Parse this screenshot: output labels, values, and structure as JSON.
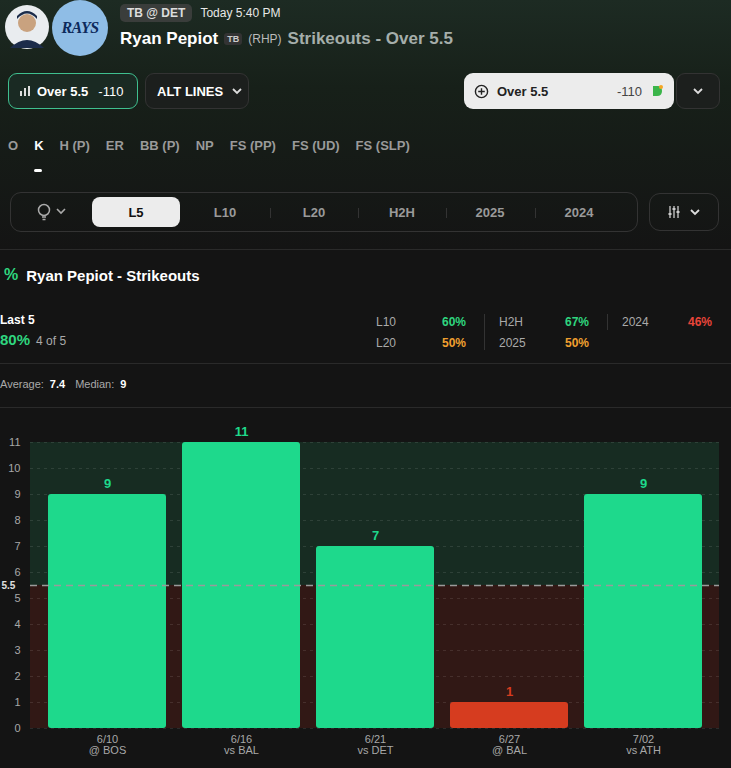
{
  "header": {
    "logo_text": "RAYS",
    "matchup": "TB @ DET",
    "time": "Today 5:40 PM",
    "player": "Ryan Pepiot",
    "team": "TB",
    "hand": "(RHP)",
    "market": "Strikeouts - Over 5.5"
  },
  "line_button": {
    "label": "Over 5.5",
    "odds": "-110"
  },
  "alt_lines": "ALT LINES",
  "bet_button": {
    "label": "Over 5.5",
    "odds": "-110"
  },
  "stat_tabs": {
    "items": [
      "O",
      "K",
      "H (P)",
      "ER",
      "BB (P)",
      "NP",
      "FS (PP)",
      "FS (UD)",
      "FS (SLP)"
    ],
    "selected": "K"
  },
  "period_tabs": {
    "items": [
      "L5",
      "L10",
      "L20",
      "H2H",
      "2025",
      "2024"
    ],
    "selected": "L5"
  },
  "section": {
    "icon": "%",
    "title": "Ryan Pepiot - Strikeouts"
  },
  "summary": {
    "label": "Last 5",
    "hit_rate": "80%",
    "count": "4 of 5"
  },
  "hit_rates": [
    {
      "label": "L10",
      "value": "60%",
      "color": "#2fd67f"
    },
    {
      "label": "H2H",
      "value": "67%",
      "color": "#2fd67f"
    },
    {
      "label": "2024",
      "value": "46%",
      "color": "#e8453a"
    },
    {
      "label": "L20",
      "value": "50%",
      "color": "#f0a030"
    },
    {
      "label": "2025",
      "value": "50%",
      "color": "#f0a030"
    }
  ],
  "stats": [
    {
      "label": "Average:",
      "value": 7.4
    },
    {
      "label": "Median:",
      "value": 9
    }
  ],
  "chart_data": {
    "type": "bar",
    "categories": [
      "6/10\n@ BOS",
      "6/16\nvs BAL",
      "6/21\nvs DET",
      "6/27\n@ BAL",
      "7/02\nvs ATH"
    ],
    "values": [
      9,
      11,
      7,
      1,
      9
    ],
    "colors": [
      "#1ed98c",
      "#1ed98c",
      "#1ed98c",
      "#d63c1f",
      "#1ed98c"
    ],
    "threshold": 5.5,
    "ylim": [
      0,
      11
    ],
    "yticks": [
      0,
      1,
      2,
      3,
      4,
      5,
      6,
      7,
      8,
      9,
      10,
      11
    ],
    "grid": true,
    "data_labels": true
  }
}
